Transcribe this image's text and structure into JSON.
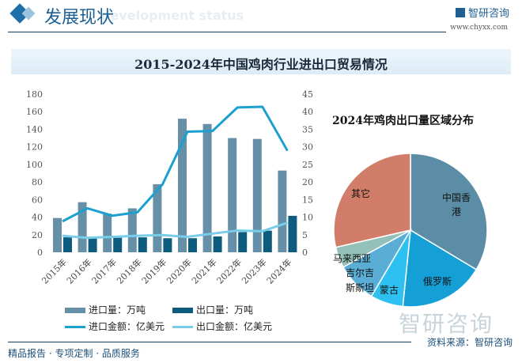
{
  "header": {
    "title": "发展现状",
    "subtitle_watermark": "development status",
    "brand": "智研咨询",
    "brand_url": "www.chyxx.com"
  },
  "chart_title": "2015-2024年中国鸡肉行业进出口贸易情况",
  "legend": {
    "import_volume": "进口量：万吨",
    "export_volume": "出口量：万吨",
    "import_value": "进口金额：亿美元",
    "export_value": "出口金额：亿美元"
  },
  "watermark": "智研咨询",
  "footer": {
    "left": "精品报告 · 专项定制 · 品质服务",
    "source": "资料来源：智研咨询"
  },
  "colors": {
    "import_volume": "#6590a7",
    "export_volume": "#0d5c7d",
    "import_value": "#1ca0cf",
    "export_value": "#79cde8"
  },
  "chart_data": [
    {
      "type": "bar+line",
      "title": "2015-2024年中国鸡肉行业进出口贸易情况",
      "categories": [
        "2015年",
        "2016年",
        "2017年",
        "2018年",
        "2019年",
        "2020年",
        "2021年",
        "2022年",
        "2023年",
        "2024年"
      ],
      "left_axis": {
        "ylim": [
          0,
          180
        ],
        "ticks": [
          "0",
          "20",
          "40",
          "60",
          "80",
          "100",
          "120",
          "140",
          "160",
          "180"
        ]
      },
      "right_axis": {
        "ylim": [
          0,
          45
        ],
        "ticks": [
          "0",
          "5",
          "10",
          "15",
          "20",
          "25",
          "30",
          "35",
          "40",
          "45"
        ]
      },
      "series": [
        {
          "name": "进口量：万吨",
          "type": "bar",
          "axis": "left",
          "values": [
            39,
            57,
            44,
            50,
            77.5,
            152,
            146,
            130,
            129,
            93
          ]
        },
        {
          "name": "出口量：万吨",
          "type": "bar",
          "axis": "left",
          "values": [
            17,
            16,
            16.5,
            17,
            16,
            16,
            18,
            23,
            24.6,
            41.5
          ]
        },
        {
          "name": "进口金额：亿美元",
          "type": "line",
          "axis": "right",
          "values": [
            8.8,
            12.5,
            10.4,
            11.4,
            19.3,
            34.3,
            34.5,
            41.2,
            41.4,
            28.9
          ]
        },
        {
          "name": "出口金额：亿美元",
          "type": "line",
          "axis": "right",
          "values": [
            4.7,
            4.1,
            4.4,
            4.7,
            4.9,
            4.4,
            5.3,
            6.2,
            6.0,
            8.4
          ]
        }
      ],
      "grid": false,
      "legend_position": "bottom"
    },
    {
      "type": "pie",
      "title": "2024年鸡肉出口量区域分布",
      "slices": [
        {
          "label": "中国香港",
          "value": 33.6,
          "color": "#5b8ea6"
        },
        {
          "label": "俄罗斯",
          "value": 18.0,
          "color": "#14a0d6"
        },
        {
          "label": "蒙古",
          "value": 6.9,
          "color": "#2ec0f0"
        },
        {
          "label": "吉尔吉斯斯坦",
          "value": 8.5,
          "color": "#5aaed6"
        },
        {
          "label": "马来西亚",
          "value": 4.4,
          "color": "#93c0b8"
        },
        {
          "label": "其它",
          "value": 28.6,
          "color": "#d27d69"
        }
      ]
    }
  ]
}
